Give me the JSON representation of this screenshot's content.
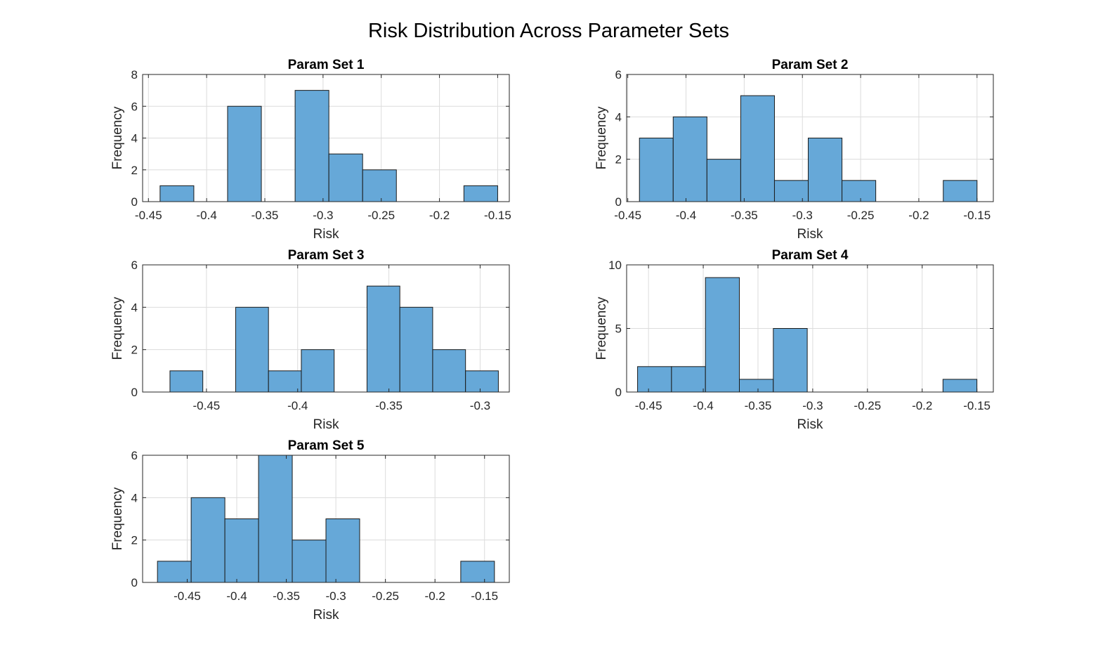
{
  "figure": {
    "title": "Risk Distribution Across Parameter Sets",
    "bar_color": "#66A8D8",
    "edge_color": "#1a1a1a",
    "grid": true
  },
  "chart_data": [
    {
      "type": "bar",
      "title": "Param Set 1",
      "xlabel": "Risk",
      "ylabel": "Frequency",
      "xlim": [
        -0.455,
        -0.14
      ],
      "ylim": [
        0,
        8
      ],
      "xticks": [
        -0.45,
        -0.4,
        -0.35,
        -0.3,
        -0.25,
        -0.2,
        -0.15
      ],
      "xtick_labels": [
        "-0.45",
        "-0.4",
        "-0.35",
        "-0.3",
        "-0.25",
        "-0.2",
        "-0.15"
      ],
      "yticks": [
        0,
        2,
        4,
        6,
        8
      ],
      "ytick_labels": [
        "0",
        "2",
        "4",
        "6",
        "8"
      ],
      "bin_edges": [
        -0.44,
        -0.411,
        -0.382,
        -0.353,
        -0.324,
        -0.295,
        -0.266,
        -0.237,
        -0.208,
        -0.179,
        -0.15
      ],
      "counts": [
        1,
        0,
        6,
        0,
        7,
        3,
        2,
        0,
        0,
        1
      ]
    },
    {
      "type": "bar",
      "title": "Param Set 2",
      "xlabel": "Risk",
      "ylabel": "Frequency",
      "xlim": [
        -0.451,
        -0.136
      ],
      "ylim": [
        0,
        6
      ],
      "xticks": [
        -0.45,
        -0.4,
        -0.35,
        -0.3,
        -0.25,
        -0.2,
        -0.15
      ],
      "xtick_labels": [
        "-0.45",
        "-0.4",
        "-0.35",
        "-0.3",
        "-0.25",
        "-0.2",
        "-0.15"
      ],
      "yticks": [
        0,
        2,
        4,
        6
      ],
      "ytick_labels": [
        "0",
        "2",
        "4",
        "6"
      ],
      "bin_edges": [
        -0.44,
        -0.411,
        -0.382,
        -0.353,
        -0.324,
        -0.295,
        -0.266,
        -0.237,
        -0.208,
        -0.179,
        -0.15
      ],
      "counts": [
        3,
        4,
        2,
        5,
        1,
        3,
        1,
        0,
        0,
        1
      ]
    },
    {
      "type": "bar",
      "title": "Param Set 3",
      "xlabel": "Risk",
      "ylabel": "Frequency",
      "xlim": [
        -0.485,
        -0.284
      ],
      "ylim": [
        0,
        6
      ],
      "xticks": [
        -0.45,
        -0.4,
        -0.35,
        -0.3
      ],
      "xtick_labels": [
        "-0.45",
        "-0.4",
        "-0.35",
        "-0.3"
      ],
      "yticks": [
        0,
        2,
        4,
        6
      ],
      "ytick_labels": [
        "0",
        "2",
        "4",
        "6"
      ],
      "bin_edges": [
        -0.47,
        -0.452,
        -0.434,
        -0.416,
        -0.398,
        -0.38,
        -0.362,
        -0.344,
        -0.326,
        -0.308,
        -0.29
      ],
      "counts": [
        1,
        0,
        4,
        1,
        2,
        0,
        5,
        4,
        2,
        1
      ]
    },
    {
      "type": "bar",
      "title": "Param Set 4",
      "xlabel": "Risk",
      "ylabel": "Frequency",
      "xlim": [
        -0.47,
        -0.135
      ],
      "ylim": [
        0,
        10
      ],
      "xticks": [
        -0.45,
        -0.4,
        -0.35,
        -0.3,
        -0.25,
        -0.2,
        -0.15
      ],
      "xtick_labels": [
        "-0.45",
        "-0.4",
        "-0.35",
        "-0.3",
        "-0.25",
        "-0.2",
        "-0.15"
      ],
      "yticks": [
        0,
        5,
        10
      ],
      "ytick_labels": [
        "0",
        "5",
        "10"
      ],
      "bin_edges": [
        -0.46,
        -0.429,
        -0.398,
        -0.367,
        -0.336,
        -0.305,
        -0.274,
        -0.243,
        -0.212,
        -0.181,
        -0.15
      ],
      "counts": [
        2,
        2,
        9,
        1,
        5,
        0,
        0,
        0,
        0,
        1
      ]
    },
    {
      "type": "bar",
      "title": "Param Set 5",
      "xlabel": "Risk",
      "ylabel": "Frequency",
      "xlim": [
        -0.495,
        -0.125
      ],
      "ylim": [
        0,
        6
      ],
      "xticks": [
        -0.45,
        -0.4,
        -0.35,
        -0.3,
        -0.25,
        -0.2,
        -0.15
      ],
      "xtick_labels": [
        "-0.45",
        "-0.4",
        "-0.35",
        "-0.3",
        "-0.25",
        "-0.2",
        "-0.15"
      ],
      "yticks": [
        0,
        2,
        4,
        6
      ],
      "ytick_labels": [
        "0",
        "2",
        "4",
        "6"
      ],
      "bin_edges": [
        -0.48,
        -0.446,
        -0.412,
        -0.378,
        -0.344,
        -0.31,
        -0.276,
        -0.242,
        -0.208,
        -0.174,
        -0.14
      ],
      "counts": [
        1,
        4,
        3,
        6,
        2,
        3,
        0,
        0,
        0,
        1
      ]
    }
  ]
}
